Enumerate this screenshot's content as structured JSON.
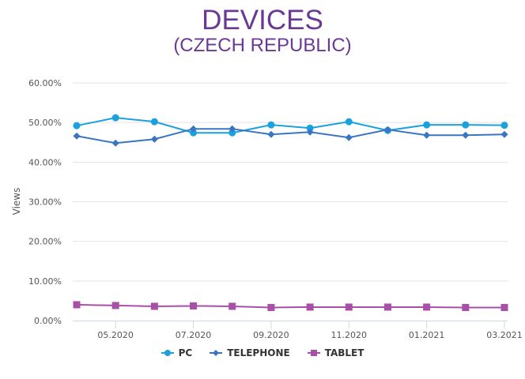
{
  "chart_data": {
    "type": "line",
    "title": "DEVICES",
    "subtitle": "(CZECH REPUBLIC)",
    "xlabel": "",
    "ylabel": "Views",
    "ylim": [
      0,
      60
    ],
    "yticks": [
      "0.00%",
      "10.00%",
      "20.00%",
      "30.00%",
      "40.00%",
      "50.00%",
      "60.00%"
    ],
    "ytick_values": [
      0,
      10,
      20,
      30,
      40,
      50,
      60
    ],
    "x": [
      "04.2020",
      "05.2020",
      "06.2020",
      "07.2020",
      "08.2020",
      "09.2020",
      "10.2020",
      "11.2020",
      "12.2020",
      "01.2021",
      "02.2021",
      "03.2021"
    ],
    "xtick_labels": [
      "05.2020",
      "07.2020",
      "09.2020",
      "11.2020",
      "01.2021",
      "03.2021"
    ],
    "xtick_indices": [
      1,
      3,
      5,
      7,
      9,
      11
    ],
    "grid": true,
    "legend_position": "bottom",
    "series": [
      {
        "name": "PC",
        "color": "#1ba1dd",
        "marker": "circle",
        "values": [
          49.2,
          51.2,
          50.2,
          47.4,
          47.4,
          49.4,
          48.6,
          50.2,
          48.0,
          49.4,
          49.4,
          49.3
        ]
      },
      {
        "name": "TELEPHONE",
        "color": "#3a75c4",
        "marker": "diamond",
        "values": [
          46.6,
          44.8,
          45.8,
          48.4,
          48.4,
          47.0,
          47.6,
          46.2,
          48.2,
          46.8,
          46.8,
          47.0
        ]
      },
      {
        "name": "TABLET",
        "color": "#a84fa8",
        "marker": "square",
        "values": [
          4.0,
          3.8,
          3.6,
          3.7,
          3.6,
          3.3,
          3.4,
          3.4,
          3.4,
          3.4,
          3.3,
          3.3
        ]
      }
    ]
  }
}
